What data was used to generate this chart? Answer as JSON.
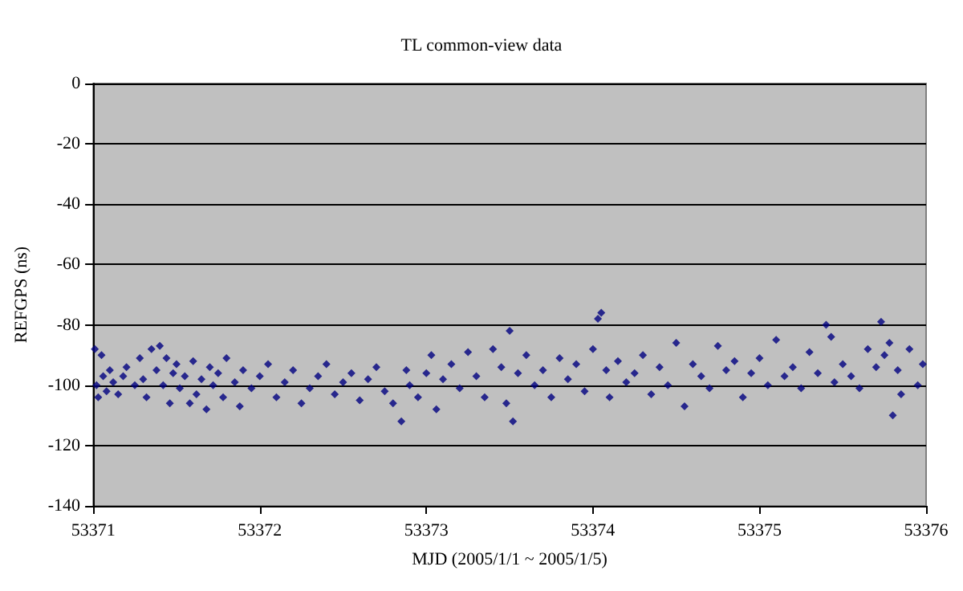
{
  "chart_data": {
    "type": "scatter",
    "title": "TL common-view data",
    "xlabel": "MJD (2005/1/1 ~ 2005/1/5)",
    "ylabel": "REFGPS (ns)",
    "xlim": [
      53371,
      53376
    ],
    "xticks": [
      53371,
      53372,
      53373,
      53374,
      53375,
      53376
    ],
    "ylim": [
      -140,
      0
    ],
    "yticks": [
      -140,
      -120,
      -100,
      -80,
      -60,
      -40,
      -20,
      0
    ],
    "grid": "y",
    "marker": "diamond",
    "series": [
      {
        "color": "#000080",
        "x": [
          53371.01,
          53371.02,
          53371.03,
          53371.05,
          53371.06,
          53371.08,
          53371.1,
          53371.12,
          53371.15,
          53371.18,
          53371.2,
          53371.25,
          53371.28,
          53371.3,
          53371.32,
          53371.35,
          53371.38,
          53371.4,
          53371.42,
          53371.44,
          53371.46,
          53371.48,
          53371.5,
          53371.52,
          53371.55,
          53371.58,
          53371.6,
          53371.62,
          53371.65,
          53371.68,
          53371.7,
          53371.72,
          53371.75,
          53371.78,
          53371.8,
          53371.85,
          53371.88,
          53371.9,
          53371.95,
          53372.0,
          53372.05,
          53372.1,
          53372.15,
          53372.2,
          53372.25,
          53372.3,
          53372.35,
          53372.4,
          53372.45,
          53372.5,
          53372.55,
          53372.6,
          53372.65,
          53372.7,
          53372.75,
          53372.8,
          53372.85,
          53372.88,
          53372.9,
          53372.95,
          53373.0,
          53373.03,
          53373.06,
          53373.1,
          53373.15,
          53373.2,
          53373.25,
          53373.3,
          53373.35,
          53373.4,
          53373.45,
          53373.48,
          53373.5,
          53373.52,
          53373.55,
          53373.6,
          53373.65,
          53373.7,
          53373.75,
          53373.8,
          53373.85,
          53373.9,
          53373.95,
          53374.0,
          53374.03,
          53374.05,
          53374.08,
          53374.1,
          53374.15,
          53374.2,
          53374.25,
          53374.3,
          53374.35,
          53374.4,
          53374.45,
          53374.5,
          53374.55,
          53374.6,
          53374.65,
          53374.7,
          53374.75,
          53374.8,
          53374.85,
          53374.9,
          53374.95,
          53375.0,
          53375.05,
          53375.1,
          53375.15,
          53375.2,
          53375.25,
          53375.3,
          53375.35,
          53375.4,
          53375.43,
          53375.45,
          53375.5,
          53375.55,
          53375.6,
          53375.65,
          53375.7,
          53375.73,
          53375.75,
          53375.78,
          53375.8,
          53375.83,
          53375.85,
          53375.9,
          53375.95,
          53375.98
        ],
        "values": [
          -88,
          -100,
          -104,
          -90,
          -97,
          -102,
          -95,
          -99,
          -103,
          -97,
          -94,
          -100,
          -91,
          -98,
          -104,
          -88,
          -95,
          -87,
          -100,
          -91,
          -106,
          -96,
          -93,
          -101,
          -97,
          -106,
          -92,
          -103,
          -98,
          -108,
          -94,
          -100,
          -96,
          -104,
          -91,
          -99,
          -107,
          -95,
          -101,
          -97,
          -93,
          -104,
          -99,
          -95,
          -106,
          -101,
          -97,
          -93,
          -103,
          -99,
          -96,
          -105,
          -98,
          -94,
          -102,
          -106,
          -112,
          -95,
          -100,
          -104,
          -96,
          -90,
          -108,
          -98,
          -93,
          -101,
          -89,
          -97,
          -104,
          -88,
          -94,
          -106,
          -82,
          -112,
          -96,
          -90,
          -100,
          -95,
          -104,
          -91,
          -98,
          -93,
          -102,
          -88,
          -78,
          -76,
          -95,
          -104,
          -92,
          -99,
          -96,
          -90,
          -103,
          -94,
          -100,
          -86,
          -107,
          -93,
          -97,
          -101,
          -87,
          -95,
          -92,
          -104,
          -96,
          -91,
          -100,
          -85,
          -97,
          -94,
          -101,
          -89,
          -96,
          -80,
          -84,
          -99,
          -93,
          -97,
          -101,
          -88,
          -94,
          -79,
          -90,
          -86,
          -110,
          -95,
          -103,
          -88,
          -100,
          -93
        ]
      }
    ]
  }
}
